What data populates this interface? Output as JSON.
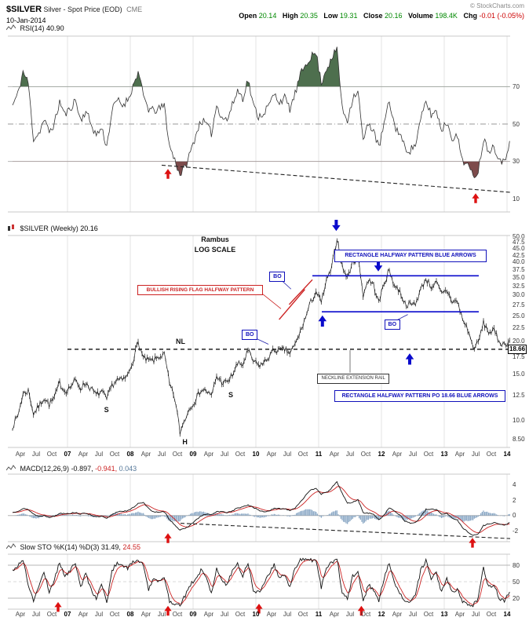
{
  "header": {
    "symbol": "$SILVER",
    "title": "Silver - Spot Price (EOD)",
    "exchange": "CME",
    "date": "10-Jan-2014",
    "copyright": "© StockCharts.com",
    "quote": {
      "open_label": "Open",
      "open": "20.14",
      "high_label": "High",
      "high": "20.35",
      "low_label": "Low",
      "low": "19.31",
      "close_label": "Close",
      "close": "20.16",
      "volume_label": "Volume",
      "volume": "198.4K",
      "chg_label": "Chg",
      "chg": "-0.01 (-0.05%)"
    },
    "colors": {
      "up": "#008800",
      "down": "#cc0000"
    }
  },
  "legends": {
    "rsi": {
      "label": "RSI(14)",
      "value": "40.90"
    },
    "price": {
      "label": "$SILVER (Weekly)",
      "value": "20.16"
    },
    "macd": {
      "label": "MACD(12,26,9)",
      "v1": "-0.897,",
      "v2": "-0.941,",
      "v3": "0.043"
    },
    "sto": {
      "label": "Slow STO %K(14) %D(3)",
      "v1": "31.49,",
      "v2": "24.55"
    }
  },
  "axes": {
    "rsi": [
      "70",
      "50",
      "30",
      "10"
    ],
    "price": [
      "50.0",
      "47.5",
      "45.0",
      "42.5",
      "40.0",
      "37.5",
      "35.0",
      "32.5",
      "30.0",
      "27.5",
      "25.0",
      "22.5",
      "20.0",
      "17.5",
      "15.0",
      "12.5",
      "10.0",
      "8.50"
    ],
    "macd": [
      "4",
      "2",
      "0",
      "-2"
    ],
    "sto": [
      "80",
      "50",
      "20"
    ]
  },
  "chart_data": {
    "type": "line",
    "title": "$SILVER Silver - Spot Price (EOD) CME",
    "timeframe": "weekly",
    "log_scale": true,
    "x_start": 2006.125,
    "x_step_months": 1,
    "x_axis_labels": [
      "Apr",
      "Jul",
      "Oct",
      "07",
      "Apr",
      "Jul",
      "Oct",
      "08",
      "Apr",
      "Jul",
      "Oct",
      "09",
      "Apr",
      "Jul",
      "Oct",
      "10",
      "Apr",
      "Jul",
      "Oct",
      "11",
      "Apr",
      "Jul",
      "Oct",
      "12",
      "Apr",
      "Jul",
      "Oct",
      "13",
      "Apr",
      "Jul",
      "Oct",
      "14"
    ],
    "render": {
      "noise_price": 0.028,
      "noise_rsi": 2.2,
      "noise_macd": 0.07,
      "noise_sto": 3.5
    },
    "panels": {
      "rsi": {
        "name": "RSI(14)",
        "last_value": 40.9,
        "ylim": [
          0,
          100
        ],
        "overbought": 70,
        "oversold": 30,
        "mid": 50,
        "line_color": "#333333",
        "fill_hi": "#4e6f4e",
        "fill_lo": "#7d4b4b",
        "values": [
          60,
          66,
          78,
          72,
          42,
          45,
          52,
          46,
          50,
          62,
          55,
          58,
          63,
          52,
          57,
          50,
          44,
          48,
          38,
          57,
          63,
          60,
          63,
          70,
          78,
          65,
          58,
          57,
          58,
          60,
          38,
          31,
          23,
          27,
          35,
          44,
          52,
          50,
          45,
          60,
          54,
          52,
          60,
          68,
          64,
          74,
          60,
          54,
          56,
          60,
          66,
          62,
          64,
          58,
          66,
          76,
          82,
          86,
          88,
          72,
          80,
          84,
          91,
          58,
          52,
          64,
          68,
          41,
          50,
          47,
          37,
          50,
          62,
          49,
          45,
          37,
          36,
          39,
          52,
          62,
          55,
          57,
          47,
          51,
          43,
          43,
          31,
          28,
          22,
          25,
          42,
          36,
          38,
          32,
          29,
          40.9
        ],
        "trendline": {
          "x1": 2008.5,
          "y1": 28,
          "x2": 2014.05,
          "y2": 13.5
        },
        "arrows": [
          {
            "x": 2008.6,
            "v": 26
          },
          {
            "x": 2013.5,
            "v": 13
          }
        ],
        "arrow_color": "#dd1111"
      },
      "price": {
        "name": "$SILVER (Weekly)",
        "last_value": 20.16,
        "ylim": [
          8.5,
          50
        ],
        "values": [
          9.5,
          10.4,
          12.6,
          13.0,
          10.6,
          11.3,
          12.2,
          11.5,
          12.2,
          13.9,
          12.9,
          13.4,
          14.2,
          13.3,
          13.9,
          13.2,
          12.5,
          12.9,
          12.0,
          13.6,
          14.3,
          14.2,
          14.8,
          16.9,
          19.8,
          17.2,
          16.9,
          16.9,
          17.5,
          17.8,
          13.7,
          12.1,
          9.0,
          10.2,
          11.3,
          12.0,
          13.1,
          13.0,
          12.3,
          14.7,
          14.0,
          13.9,
          14.9,
          16.4,
          16.3,
          18.4,
          16.8,
          16.2,
          16.5,
          17.5,
          18.6,
          18.4,
          18.6,
          18.0,
          19.4,
          21.7,
          24.6,
          28.2,
          30.9,
          28.0,
          33.9,
          37.9,
          49.3,
          38.3,
          34.8,
          40.1,
          41.8,
          30.0,
          34.3,
          32.7,
          27.9,
          33.3,
          37.1,
          32.5,
          31.0,
          27.8,
          27.5,
          27.9,
          31.4,
          34.6,
          32.3,
          33.3,
          30.2,
          31.2,
          28.4,
          28.3,
          24.2,
          22.2,
          18.9,
          19.7,
          23.5,
          21.7,
          21.9,
          20.0,
          19.4,
          20.16
        ],
        "neckline": {
          "x1": 2007.0,
          "x2": 2014.05,
          "p": 18.66
        },
        "rect_lines": [
          {
            "x1": 2010.9,
            "x2": 2013.55,
            "p": 35.5
          },
          {
            "x1": 2011.05,
            "x2": 2013.55,
            "p": 25.9
          }
        ],
        "flag_lines": [
          {
            "x1": 2010.37,
            "p1": 24.2,
            "x2": 2010.78,
            "p2": 31.5
          },
          {
            "x1": 2010.53,
            "p1": 27.6,
            "x2": 2010.9,
            "p2": 34.3
          }
        ],
        "callout_lines": [
          {
            "x1": 2010.09,
            "p1": 30.5,
            "x2": 2010.4,
            "p2": 26.6,
            "color": "#cc2222"
          },
          {
            "x1": 2011.5,
            "p1": 18.5,
            "x2": 2011.5,
            "p2": 15.2,
            "color": "#555555"
          },
          {
            "x1": 2009.95,
            "p1": 20.8,
            "x2": 2010.2,
            "p2": 19.5,
            "color": "#2222aa"
          },
          {
            "x1": 2010.38,
            "p1": 34.6,
            "x2": 2010.56,
            "p2": 31.6,
            "color": "#2222aa"
          },
          {
            "x1": 2012.22,
            "p1": 23.9,
            "x2": 2012.42,
            "p2": 25.3,
            "color": "#2222aa"
          }
        ],
        "boxes": [
          {
            "name": "bullish-flag-label",
            "x1": 2008.11,
            "x2": 2010.09,
            "p1": 32.8,
            "p2": 30.3,
            "text": "BULLISH RISING FLAG HALFWAY PATTERN",
            "color": "#cc2222",
            "fs": 6.5,
            "bold": true
          },
          {
            "name": "rectangle-pattern-label",
            "x1": 2011.25,
            "x2": 2013.65,
            "p1": 44.6,
            "p2": 40.4,
            "text": "RECTANGLE HALFWAY PATTERN BLUE ARROWS",
            "color": "#1111bb",
            "fs": 7,
            "bold": true
          },
          {
            "name": "rectangle-po-label",
            "x1": 2011.25,
            "x2": 2013.95,
            "p1": 13.05,
            "p2": 11.9,
            "text": "RECTANGLE HALFWAY PATTERN PO 18.66 BLUE ARROWS",
            "color": "#1111bb",
            "fs": 7,
            "bold": true
          },
          {
            "name": "neckline-extension-label",
            "x1": 2010.98,
            "x2": 2012.1,
            "p1": 15.1,
            "p2": 13.95,
            "text": "NECKLINE EXTENSION RAIL",
            "color": "#333333",
            "fs": 6,
            "bold": false
          }
        ],
        "bo_label": "BO",
        "bo_boxes": [
          {
            "x": 2009.89,
            "p": 21.3
          },
          {
            "x": 2010.33,
            "p": 35.3
          },
          {
            "x": 2012.16,
            "p": 23.3
          }
        ],
        "letters": [
          {
            "x": 2008.8,
            "p": 19.9,
            "text": "NL",
            "fs": 9,
            "bold": true
          },
          {
            "x": 2007.62,
            "p": 10.9,
            "text": "S",
            "fs": 9,
            "bold": true
          },
          {
            "x": 2009.6,
            "p": 12.4,
            "text": "S",
            "fs": 9,
            "bold": true
          },
          {
            "x": 2008.87,
            "p": 8.25,
            "text": "H",
            "fs": 9,
            "bold": true
          },
          {
            "x": 2009.35,
            "p": 48.6,
            "text": "Rambus",
            "fs": 9,
            "bold": true
          },
          {
            "x": 2009.35,
            "p": 44.3,
            "text": "LOG SCALE",
            "fs": 9,
            "bold": true
          }
        ],
        "arrows": [
          {
            "x": 2011.28,
            "p": 52.5,
            "dir": "down"
          },
          {
            "x": 2011.95,
            "p": 36.9,
            "dir": "down"
          },
          {
            "x": 2011.06,
            "p": 25.1,
            "dir": "up"
          },
          {
            "x": 2012.45,
            "p": 18.0,
            "dir": "up"
          }
        ],
        "arrow_color": "#0a0acc",
        "po_axis_label": "18.66"
      },
      "macd": {
        "name": "MACD(12,26,9)",
        "last_values": [
          -0.897,
          -0.941,
          0.043
        ],
        "signal_alpha": 0.18,
        "colors": {
          "macd": "#111111",
          "signal": "#cc2222",
          "hist": "#7799bb"
        },
        "values": [
          0.4,
          0.6,
          0.9,
          0.8,
          0.2,
          -0.1,
          0.0,
          -0.2,
          -0.1,
          0.3,
          0.3,
          0.3,
          0.4,
          0.2,
          0.3,
          0.1,
          -0.2,
          -0.1,
          -0.4,
          0.1,
          0.5,
          0.6,
          0.6,
          1.0,
          1.6,
          1.7,
          0.9,
          0.5,
          0.4,
          0.5,
          -0.5,
          -1.2,
          -1.9,
          -1.7,
          -1.2,
          -0.6,
          -0.1,
          0.2,
          0.1,
          0.5,
          0.5,
          0.4,
          0.6,
          1.0,
          1.1,
          1.4,
          1.1,
          0.7,
          0.5,
          0.6,
          0.9,
          0.9,
          0.9,
          0.7,
          1.0,
          1.8,
          2.6,
          3.3,
          3.6,
          2.8,
          3.0,
          3.6,
          4.4,
          2.9,
          1.6,
          1.7,
          2.1,
          0.4,
          0.3,
          0.2,
          -0.6,
          0.1,
          1.0,
          0.6,
          0.1,
          -0.7,
          -1.0,
          -0.9,
          -0.2,
          0.8,
          0.8,
          0.8,
          0.2,
          0.3,
          -0.3,
          -0.6,
          -1.6,
          -2.1,
          -2.6,
          -2.4,
          -1.3,
          -1.1,
          -0.9,
          -1.1,
          -1.3,
          -0.9
        ],
        "trendline": {
          "x1": 2008.8,
          "v1": -1.0,
          "x2": 2014.05,
          "v2": -3.0
        },
        "arrows": [
          {
            "x": 2008.6,
            "v": -2.3
          },
          {
            "x": 2013.45,
            "v": -2.9
          }
        ],
        "arrow_color": "#dd1111"
      },
      "sto": {
        "name": "Slow STO %K(14) %D(3)",
        "last_values": [
          31.49,
          24.55
        ],
        "d_alpha": 0.3,
        "colors": {
          "k": "#111111",
          "d": "#cc2222"
        },
        "k_values": [
          70,
          80,
          90,
          45,
          15,
          40,
          70,
          30,
          55,
          85,
          60,
          70,
          85,
          40,
          65,
          35,
          20,
          45,
          12,
          70,
          85,
          80,
          75,
          85,
          90,
          80,
          35,
          55,
          50,
          60,
          15,
          10,
          8,
          25,
          45,
          55,
          70,
          60,
          30,
          75,
          50,
          45,
          70,
          85,
          60,
          85,
          35,
          30,
          45,
          65,
          80,
          55,
          65,
          40,
          75,
          90,
          92,
          90,
          88,
          40,
          75,
          85,
          92,
          30,
          20,
          60,
          70,
          12,
          45,
          35,
          15,
          55,
          85,
          45,
          30,
          12,
          15,
          25,
          70,
          88,
          55,
          65,
          30,
          55,
          30,
          35,
          12,
          10,
          8,
          20,
          75,
          40,
          45,
          20,
          15,
          31.5
        ],
        "arrows": [
          {
            "x": 2006.85,
            "v": 13
          },
          {
            "x": 2008.6,
            "v": 6
          },
          {
            "x": 2010.05,
            "v": 10
          },
          {
            "x": 2011.68,
            "v": 6
          }
        ],
        "arrow_color": "#dd1111"
      }
    }
  }
}
